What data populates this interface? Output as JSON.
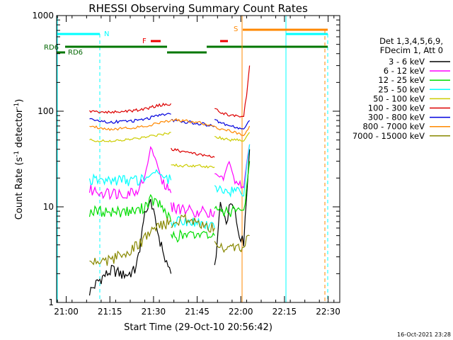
{
  "chart_data": {
    "type": "line",
    "title": "RHESSI Observing Summary Count Rates",
    "xlabel": "Start Time (29-Oct-10 20:56:42)",
    "ylabel": "Count Rate (s",
    "ylabel_sup1": "-1",
    "ylabel_mid": " detector",
    "ylabel_sup2": "-1",
    "ylabel_end": ")",
    "y_scale": "log",
    "ylim": [
      1,
      1000
    ],
    "xlim": [
      "20:56:42",
      "22:34:00"
    ],
    "y_ticks": [
      {
        "value": 1,
        "label": "1"
      },
      {
        "value": 10,
        "label": "10"
      },
      {
        "value": 100,
        "label": "100"
      },
      {
        "value": 1000,
        "label": "1000"
      }
    ],
    "x_ticks": [
      "21:00",
      "21:15",
      "21:30",
      "21:45",
      "22:00",
      "22:15",
      "22:30"
    ],
    "legend_header": [
      "Det 1,3,4,5,6,9,",
      "FDecim 1, Att 0"
    ],
    "legend_placement": "right",
    "series": [
      {
        "name": "3 - 6 keV",
        "color": "#000000",
        "segments": [
          {
            "x": [
              "21:08",
              "21:12",
              "21:16",
              "21:20",
              "21:24",
              "21:27",
              "21:29",
              "21:31",
              "21:34",
              "21:36"
            ],
            "y": [
              1.3,
              1.8,
              2.2,
              1.9,
              2.2,
              8,
              12,
              6,
              3,
              2
            ]
          },
          {
            "x": [
              "21:51",
              "21:53",
              "21:55",
              "21:57",
              "21:59",
              "22:01",
              "22:03"
            ],
            "y": [
              2.4,
              10,
              7,
              12,
              6,
              4,
              40
            ]
          }
        ]
      },
      {
        "name": "6 - 12 keV",
        "color": "#ff00ff",
        "segments": [
          {
            "x": [
              "21:08",
              "21:15",
              "21:20",
              "21:24",
              "21:27",
              "21:29",
              "21:31",
              "21:33",
              "21:36"
            ],
            "y": [
              15,
              14,
              14,
              15,
              20,
              42,
              30,
              18,
              14
            ]
          },
          {
            "x": [
              "21:36",
              "21:45",
              "21:51"
            ],
            "y": [
              10,
              9,
              9
            ]
          },
          {
            "x": [
              "21:51",
              "21:54",
              "21:56",
              "21:58",
              "22:01",
              "22:03"
            ],
            "y": [
              22,
              20,
              30,
              18,
              17,
              45
            ]
          }
        ]
      },
      {
        "name": "12 - 25 keV",
        "color": "#00dd00",
        "segments": [
          {
            "x": [
              "21:08",
              "21:15",
              "21:20",
              "21:25",
              "21:29",
              "21:33",
              "21:36"
            ],
            "y": [
              9,
              9,
              9,
              9,
              12,
              10,
              7
            ]
          },
          {
            "x": [
              "21:36",
              "21:45",
              "21:51"
            ],
            "y": [
              5,
              5,
              5
            ]
          },
          {
            "x": [
              "21:51",
              "21:56",
              "22:01",
              "22:03"
            ],
            "y": [
              9,
              9,
              9,
              30
            ]
          }
        ]
      },
      {
        "name": "25 - 50 keV",
        "color": "#00ffff",
        "segments": [
          {
            "x": [
              "21:08",
              "21:15",
              "21:20",
              "21:25",
              "21:29",
              "21:31",
              "21:34",
              "21:36"
            ],
            "y": [
              19,
              19,
              19,
              19,
              21,
              24,
              20,
              19
            ]
          },
          {
            "x": [
              "21:36",
              "21:45",
              "21:51"
            ],
            "y": [
              7,
              7,
              6
            ]
          },
          {
            "x": [
              "21:51",
              "21:56",
              "22:01",
              "22:03"
            ],
            "y": [
              15,
              15,
              15,
              45
            ]
          }
        ]
      },
      {
        "name": "50 - 100 keV",
        "color": "#cccc00",
        "segments": [
          {
            "x": [
              "21:08",
              "21:15",
              "21:25",
              "21:32",
              "21:36"
            ],
            "y": [
              50,
              48,
              52,
              57,
              60
            ]
          },
          {
            "x": [
              "21:36",
              "21:45",
              "21:51"
            ],
            "y": [
              27,
              27,
              26
            ]
          },
          {
            "x": [
              "21:51",
              "21:56",
              "22:01",
              "22:03"
            ],
            "y": [
              55,
              50,
              50,
              60
            ]
          }
        ]
      },
      {
        "name": "100 - 300 keV",
        "color": "#dd0000",
        "segments": [
          {
            "x": [
              "21:08",
              "21:15",
              "21:25",
              "21:32",
              "21:36"
            ],
            "y": [
              100,
              97,
              103,
              115,
              120
            ]
          },
          {
            "x": [
              "21:36",
              "21:42",
              "21:51"
            ],
            "y": [
              40,
              37,
              33
            ]
          },
          {
            "x": [
              "21:51",
              "21:56",
              "22:01",
              "22:02",
              "22:03"
            ],
            "y": [
              105,
              90,
              90,
              150,
              300
            ]
          }
        ]
      },
      {
        "name": "300 - 800 keV",
        "color": "#0000dd",
        "segments": [
          {
            "x": [
              "21:08",
              "21:15",
              "21:25",
              "21:32",
              "21:36"
            ],
            "y": [
              82,
              77,
              80,
              90,
              93
            ]
          },
          {
            "x": [
              "21:36",
              "21:45",
              "21:51"
            ],
            "y": [
              80,
              75,
              70
            ]
          },
          {
            "x": [
              "21:51",
              "21:56",
              "22:01",
              "22:03"
            ],
            "y": [
              80,
              70,
              65,
              80
            ]
          }
        ]
      },
      {
        "name": "800 - 7000 keV",
        "color": "#ff8800",
        "segments": [
          {
            "x": [
              "21:08",
              "21:15",
              "21:25",
              "21:32",
              "21:36"
            ],
            "y": [
              70,
              65,
              68,
              75,
              80
            ]
          },
          {
            "x": [
              "21:36",
              "21:45",
              "21:51"
            ],
            "y": [
              82,
              77,
              70
            ]
          },
          {
            "x": [
              "21:51",
              "21:56",
              "22:01",
              "22:03"
            ],
            "y": [
              67,
              62,
              57,
              70
            ]
          }
        ]
      },
      {
        "name": "7000 - 15000 keV",
        "color": "#888800",
        "segments": [
          {
            "x": [
              "21:08",
              "21:15",
              "21:20",
              "21:25",
              "21:29",
              "21:33",
              "21:36"
            ],
            "y": [
              2.7,
              2.8,
              3.3,
              4,
              5.5,
              6.5,
              7
            ]
          },
          {
            "x": [
              "21:36",
              "21:40",
              "21:45",
              "21:51"
            ],
            "y": [
              5.5,
              7.5,
              7,
              6
            ]
          },
          {
            "x": [
              "21:51",
              "21:56",
              "22:01",
              "22:03"
            ],
            "y": [
              4,
              3.8,
              3.8,
              5
            ]
          }
        ]
      }
    ],
    "annotations": [
      {
        "label": "RD6",
        "color": "#006600"
      },
      {
        "label": "RD6",
        "color": "#006600"
      },
      {
        "label": "N",
        "color": "#00ffff"
      },
      {
        "label": "F",
        "color": "#ee0000"
      },
      {
        "label": "S",
        "color": "#ff8800"
      }
    ],
    "footer": "16-Oct-2021 23:28"
  }
}
